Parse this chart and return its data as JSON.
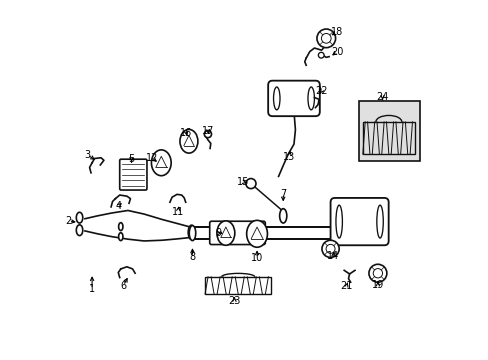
{
  "bg_color": "#ffffff",
  "line_color": "#111111",
  "text_color": "#000000",
  "font_size": 7,
  "lw": 1.2,
  "parts_labels": [
    [
      1,
      0.075,
      0.195,
      0.075,
      0.24
    ],
    [
      2,
      0.01,
      0.385,
      0.038,
      0.382
    ],
    [
      3,
      0.062,
      0.57,
      0.09,
      0.552
    ],
    [
      4,
      0.148,
      0.428,
      0.165,
      0.44
    ],
    [
      5,
      0.185,
      0.558,
      0.185,
      0.542
    ],
    [
      6,
      0.162,
      0.205,
      0.178,
      0.235
    ],
    [
      7,
      0.608,
      0.462,
      0.608,
      0.432
    ],
    [
      8,
      0.355,
      0.285,
      0.355,
      0.318
    ],
    [
      9,
      0.428,
      0.352,
      0.445,
      0.352
    ],
    [
      10,
      0.535,
      0.282,
      0.535,
      0.312
    ],
    [
      11,
      0.315,
      0.412,
      0.318,
      0.435
    ],
    [
      12,
      0.242,
      0.562,
      0.262,
      0.545
    ],
    [
      13,
      0.625,
      0.565,
      0.628,
      0.59
    ],
    [
      14,
      0.748,
      0.288,
      0.748,
      0.308
    ],
    [
      15,
      0.495,
      0.495,
      0.515,
      0.49
    ],
    [
      16,
      0.338,
      0.632,
      0.342,
      0.615
    ],
    [
      17,
      0.398,
      0.638,
      0.4,
      0.62
    ],
    [
      18,
      0.758,
      0.912,
      0.735,
      0.9
    ],
    [
      19,
      0.872,
      0.208,
      0.872,
      0.225
    ],
    [
      20,
      0.758,
      0.858,
      0.738,
      0.842
    ],
    [
      21,
      0.785,
      0.205,
      0.79,
      0.222
    ],
    [
      22,
      0.715,
      0.748,
      0.705,
      0.735
    ],
    [
      23,
      0.472,
      0.162,
      0.472,
      0.182
    ],
    [
      24,
      0.885,
      0.732,
      0.885,
      0.715
    ]
  ]
}
